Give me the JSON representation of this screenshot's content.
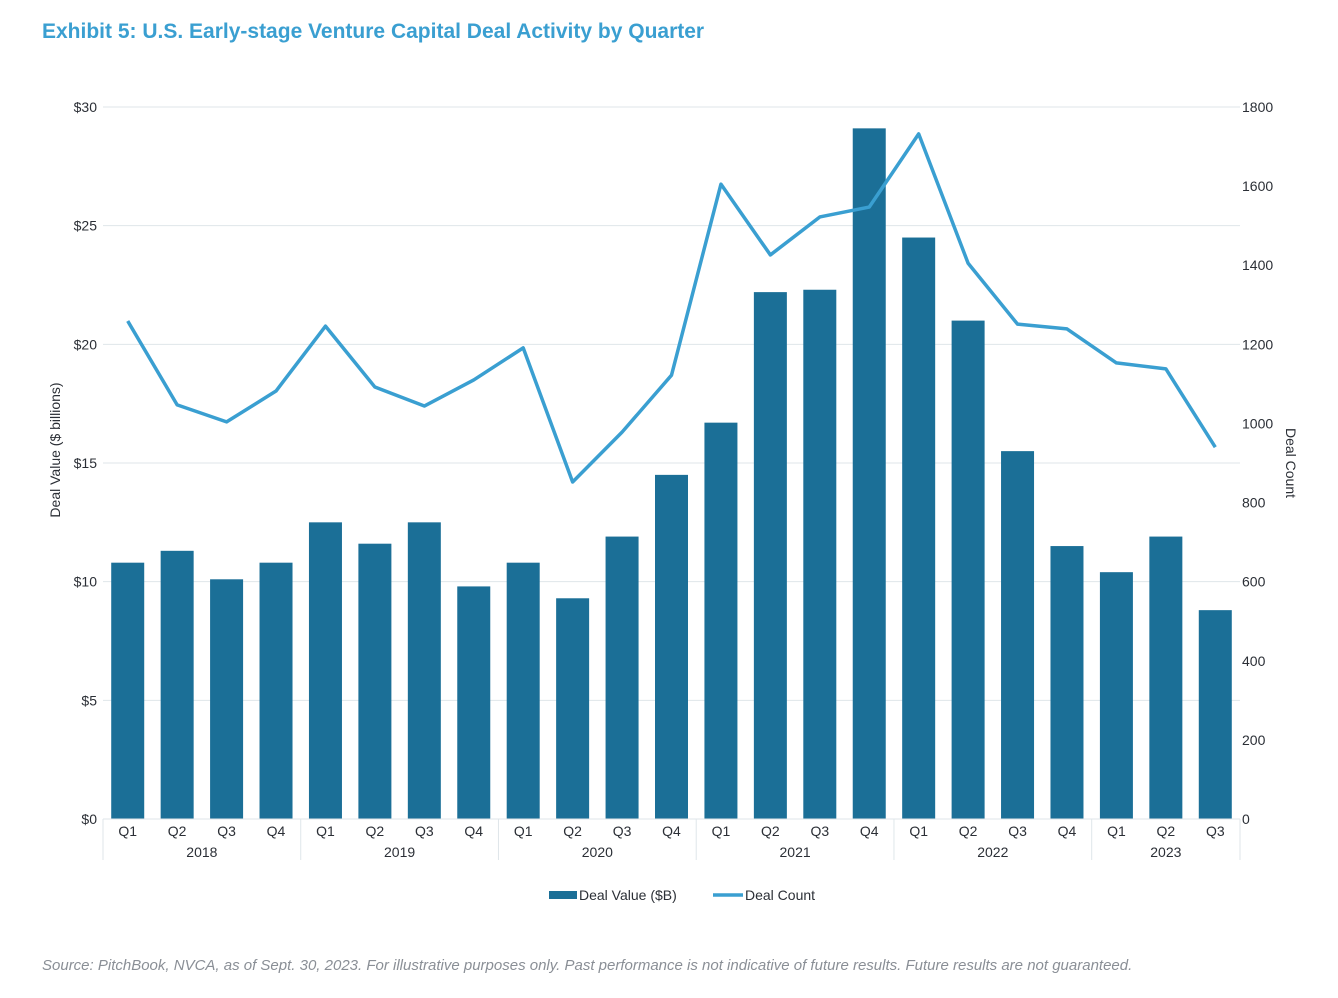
{
  "title": "Exhibit 5: U.S. Early-stage Venture Capital Deal Activity by Quarter",
  "source": "Source: PitchBook, NVCA, as of Sept. 30, 2023. For illustrative purposes only. Past performance is not indicative of future results. Future results are not guaranteed.",
  "chart_data": {
    "type": "bar+line",
    "title": "Exhibit 5: U.S. Early-stage Venture Capital Deal Activity by Quarter",
    "ylabel": "Deal Value ($ billions)",
    "y2label": "Deal Count",
    "ylim": [
      0,
      30
    ],
    "y2lim": [
      0,
      1800
    ],
    "yticks": [
      "$0",
      "$5",
      "$10",
      "$15",
      "$20",
      "$25",
      "$30"
    ],
    "y2ticks": [
      "0",
      "200",
      "400",
      "600",
      "800",
      "1000",
      "1200",
      "1400",
      "1600",
      "1800"
    ],
    "grid": true,
    "legend_position": "bottom",
    "quarters": [
      "Q1",
      "Q2",
      "Q3",
      "Q4",
      "Q1",
      "Q2",
      "Q3",
      "Q4",
      "Q1",
      "Q2",
      "Q3",
      "Q4",
      "Q1",
      "Q2",
      "Q3",
      "Q4",
      "Q1",
      "Q2",
      "Q3",
      "Q4",
      "Q1",
      "Q2",
      "Q3"
    ],
    "years": [
      {
        "label": "2018",
        "count": 4
      },
      {
        "label": "2019",
        "count": 4
      },
      {
        "label": "2020",
        "count": 4
      },
      {
        "label": "2021",
        "count": 4
      },
      {
        "label": "2022",
        "count": 4
      },
      {
        "label": "2023",
        "count": 3
      }
    ],
    "series": [
      {
        "name": "Deal Value ($B)",
        "type": "bar",
        "axis": "left",
        "color": "#1b6f97",
        "values": [
          10.8,
          11.3,
          10.1,
          10.8,
          12.5,
          11.6,
          12.5,
          9.8,
          10.8,
          9.3,
          11.9,
          14.5,
          16.7,
          22.2,
          22.3,
          29.1,
          24.5,
          21.0,
          15.5,
          11.5,
          10.4,
          11.9,
          8.8
        ]
      },
      {
        "name": "Deal Count",
        "type": "line",
        "axis": "right",
        "color": "#3a9fd1",
        "values": [
          1259,
          1047,
          1004,
          1082,
          1246,
          1092,
          1044,
          1110,
          1191,
          852,
          978,
          1122,
          1605,
          1426,
          1522,
          1547,
          1732,
          1405,
          1251,
          1239,
          1153,
          1138,
          940
        ]
      }
    ]
  }
}
